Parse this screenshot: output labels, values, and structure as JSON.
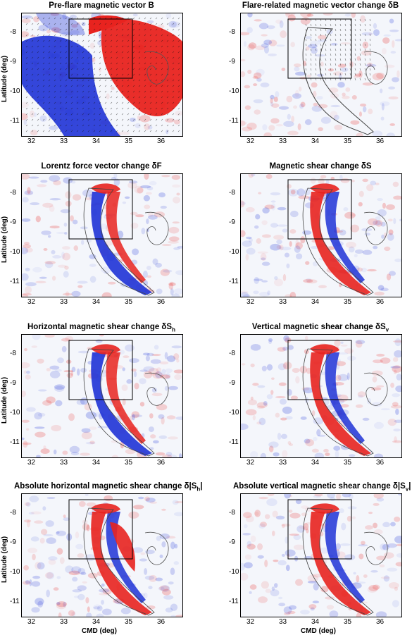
{
  "colors": {
    "positive": "#e8231f",
    "negative": "#1f33d6",
    "neutral": "#f4f6fb",
    "contour": "#555555"
  },
  "axes": {
    "ylabel": "Latitude (deg)",
    "xlabel": "CMD (deg)",
    "xticks": [
      "32",
      "33",
      "34",
      "35",
      "36"
    ],
    "yticks": [
      "-8",
      "-9",
      "-10",
      "-11"
    ]
  },
  "chart_data": [
    {
      "type": "heatmap",
      "title": "Pre-flare magnetic vector B",
      "xlabel": "",
      "ylabel": "Latitude (deg)",
      "xlim": [
        31.6,
        36.6
      ],
      "ylim": [
        -11.2,
        -7.4
      ],
      "has_vectors": true
    },
    {
      "type": "heatmap",
      "title": "Flare-related magnetic vector change δB",
      "xlabel": "",
      "ylabel": "",
      "xlim": [
        31.6,
        36.6
      ],
      "ylim": [
        -11.2,
        -7.4
      ],
      "has_vectors": true
    },
    {
      "type": "heatmap",
      "title": "Lorentz force vector change δF",
      "xlabel": "",
      "ylabel": "Latitude (deg)",
      "xlim": [
        31.6,
        36.6
      ],
      "ylim": [
        -11.2,
        -7.4
      ]
    },
    {
      "type": "heatmap",
      "title": "Magnetic shear change δS",
      "xlabel": "",
      "ylabel": "",
      "xlim": [
        31.6,
        36.6
      ],
      "ylim": [
        -11.2,
        -7.4
      ]
    },
    {
      "type": "heatmap",
      "title": "Horizontal magnetic shear change δS",
      "title_sub": "h",
      "xlabel": "",
      "ylabel": "Latitude (deg)",
      "xlim": [
        31.6,
        36.6
      ],
      "ylim": [
        -11.2,
        -7.4
      ]
    },
    {
      "type": "heatmap",
      "title": "Vertical magnetic shear change δS",
      "title_sub": "v",
      "xlabel": "",
      "ylabel": "",
      "xlim": [
        31.6,
        36.6
      ],
      "ylim": [
        -11.2,
        -7.4
      ]
    },
    {
      "type": "heatmap",
      "title": "Absolute horizontal magnetic shear change δ|S",
      "title_sub": "h",
      "title_end": "|",
      "xlabel": "CMD (deg)",
      "ylabel": "Latitude (deg)",
      "xlim": [
        31.6,
        36.6
      ],
      "ylim": [
        -11.2,
        -7.4
      ]
    },
    {
      "type": "heatmap",
      "title": "Absolute vertical magnetic shear change δ|S",
      "title_sub": "v",
      "title_end": "|",
      "xlabel": "CMD (deg)",
      "ylabel": "",
      "xlim": [
        31.6,
        36.6
      ],
      "ylim": [
        -11.2,
        -7.4
      ]
    }
  ]
}
